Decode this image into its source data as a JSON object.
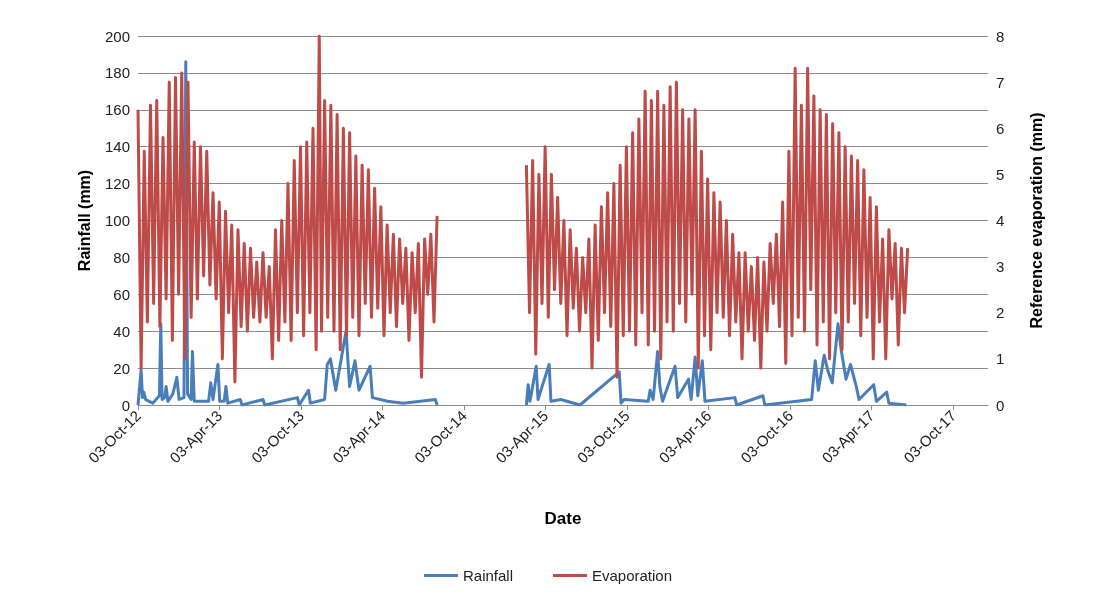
{
  "chart_data": {
    "type": "line",
    "xlabel": "Date",
    "ylabel": "Rainfall (mm)",
    "y2label": "Reference evaporation (mm)",
    "xlim": [
      "2012-10-03",
      "2017-12-20"
    ],
    "xticks": [
      {
        "value": "2012-10-03",
        "label": "03-Oct-12"
      },
      {
        "value": "2013-04-03",
        "label": "03-Apr-13"
      },
      {
        "value": "2013-10-03",
        "label": "03-Oct-13"
      },
      {
        "value": "2014-04-03",
        "label": "03-Apr-14"
      },
      {
        "value": "2014-10-03",
        "label": "03-Oct-14"
      },
      {
        "value": "2015-04-03",
        "label": "03-Apr-15"
      },
      {
        "value": "2015-10-03",
        "label": "03-Oct-15"
      },
      {
        "value": "2016-04-03",
        "label": "03-Apr-16"
      },
      {
        "value": "2016-10-03",
        "label": "03-Oct-16"
      },
      {
        "value": "2017-04-03",
        "label": "03-Apr-17"
      },
      {
        "value": "2017-10-03",
        "label": "03-Oct-17"
      }
    ],
    "ylim": [
      0,
      200
    ],
    "yticks": [
      0,
      20,
      40,
      60,
      80,
      100,
      120,
      140,
      160,
      180,
      200
    ],
    "y2lim": [
      0,
      8
    ],
    "y2ticks": [
      0,
      1,
      2,
      3,
      4,
      5,
      6,
      7,
      8
    ],
    "grid": "y",
    "legend": "bottom",
    "marker": "none",
    "line_style": "solid",
    "series": [
      {
        "name": "Rainfall",
        "color": "#4a7ebb",
        "x": [
          "2012-10-03",
          "2012-10-06",
          "2012-10-10",
          "2012-10-13",
          "2012-10-16",
          "2012-10-20",
          "2012-10-28",
          "2012-11-05",
          "2012-11-20",
          "2012-11-23",
          "2012-11-26",
          "2012-12-02",
          "2012-12-05",
          "2012-12-09",
          "2012-12-20",
          "2012-12-29",
          "2013-01-03",
          "2013-01-14",
          "2013-01-18",
          "2013-01-22",
          "2013-01-30",
          "2013-02-02",
          "2013-02-06",
          "2013-03-10",
          "2013-03-15",
          "2013-03-20",
          "2013-03-31",
          "2013-04-04",
          "2013-04-14",
          "2013-04-18",
          "2013-04-22",
          "2013-05-20",
          "2013-05-24",
          "2013-07-10",
          "2013-07-14",
          "2013-09-25",
          "2013-09-29",
          "2013-10-20",
          "2013-10-24",
          "2013-11-25",
          "2013-12-01",
          "2013-12-08",
          "2013-12-20",
          "2014-01-12",
          "2014-01-20",
          "2014-02-01",
          "2014-02-10",
          "2014-03-07",
          "2014-03-12",
          "2014-04-15",
          "2014-05-20",
          "2014-07-31",
          "2014-08-04",
          "2014-11-01",
          "2015-02-20",
          "2015-02-24",
          "2015-02-28",
          "2015-03-14",
          "2015-03-18",
          "2015-04-12",
          "2015-04-16",
          "2015-05-08",
          "2015-06-20",
          "2015-09-16",
          "2015-09-20",
          "2015-09-27",
          "2015-11-20",
          "2015-11-24",
          "2015-12-01",
          "2015-12-11",
          "2015-12-16",
          "2015-12-22",
          "2016-01-19",
          "2016-01-25",
          "2016-02-18",
          "2016-02-24",
          "2016-03-04",
          "2016-03-10",
          "2016-03-20",
          "2016-03-26",
          "2016-06-01",
          "2016-06-05",
          "2016-08-03",
          "2016-08-07",
          "2016-11-20",
          "2016-11-28",
          "2016-12-05",
          "2016-12-18",
          "2016-12-27",
          "2017-01-05",
          "2017-01-18",
          "2017-01-25",
          "2017-02-05",
          "2017-02-15",
          "2017-02-28",
          "2017-03-06",
          "2017-04-08",
          "2017-04-14",
          "2017-05-07",
          "2017-05-12",
          "2017-06-20"
        ],
        "values": [
          0,
          8,
          19,
          4,
          7,
          3,
          2,
          1,
          5,
          44,
          3,
          4,
          10,
          2,
          6,
          15,
          3,
          4,
          186,
          6,
          3,
          29,
          2,
          2,
          12,
          3,
          22,
          2,
          2,
          10,
          1,
          3,
          0,
          3,
          0,
          4,
          0,
          8,
          1,
          3,
          22,
          25,
          8,
          40,
          10,
          24,
          8,
          21,
          4,
          2,
          1,
          3,
          0,
          null,
          0,
          11,
          2,
          21,
          3,
          22,
          2,
          3,
          0,
          18,
          1,
          3,
          2,
          8,
          3,
          29,
          10,
          2,
          21,
          4,
          14,
          3,
          26,
          5,
          24,
          2,
          4,
          0,
          5,
          0,
          3,
          24,
          8,
          27,
          18,
          12,
          44,
          30,
          14,
          22,
          10,
          3,
          11,
          2,
          7,
          1,
          0
        ]
      },
      {
        "name": "Evaporation",
        "color": "#be4b48",
        "axis": "y2",
        "x": [
          "2012-10-03",
          "2012-10-10",
          "2012-10-17",
          "2012-10-24",
          "2012-10-31",
          "2012-11-07",
          "2012-11-14",
          "2012-11-21",
          "2012-11-28",
          "2012-12-05",
          "2012-12-12",
          "2012-12-19",
          "2012-12-26",
          "2013-01-02",
          "2013-01-09",
          "2013-01-16",
          "2013-01-23",
          "2013-01-30",
          "2013-02-06",
          "2013-02-13",
          "2013-02-20",
          "2013-02-27",
          "2013-03-06",
          "2013-03-13",
          "2013-03-20",
          "2013-03-27",
          "2013-04-03",
          "2013-04-10",
          "2013-04-17",
          "2013-04-24",
          "2013-05-01",
          "2013-05-08",
          "2013-05-15",
          "2013-05-22",
          "2013-05-29",
          "2013-06-05",
          "2013-06-12",
          "2013-06-19",
          "2013-06-26",
          "2013-07-03",
          "2013-07-10",
          "2013-07-17",
          "2013-07-24",
          "2013-07-31",
          "2013-08-07",
          "2013-08-14",
          "2013-08-21",
          "2013-08-28",
          "2013-09-04",
          "2013-09-11",
          "2013-09-18",
          "2013-09-25",
          "2013-10-02",
          "2013-10-09",
          "2013-10-16",
          "2013-10-23",
          "2013-10-30",
          "2013-11-06",
          "2013-11-13",
          "2013-11-18",
          "2013-11-25",
          "2013-12-02",
          "2013-12-09",
          "2013-12-16",
          "2013-12-23",
          "2013-12-30",
          "2014-01-06",
          "2014-01-13",
          "2014-01-20",
          "2014-01-27",
          "2014-02-03",
          "2014-02-10",
          "2014-02-17",
          "2014-02-24",
          "2014-03-03",
          "2014-03-10",
          "2014-03-17",
          "2014-03-24",
          "2014-03-31",
          "2014-04-07",
          "2014-04-14",
          "2014-04-21",
          "2014-04-28",
          "2014-05-05",
          "2014-05-12",
          "2014-05-19",
          "2014-05-26",
          "2014-06-02",
          "2014-06-09",
          "2014-06-16",
          "2014-06-23",
          "2014-06-30",
          "2014-07-07",
          "2014-07-14",
          "2014-07-21",
          "2014-07-28",
          "2014-08-04",
          "2014-11-01",
          "2015-02-20",
          "2015-02-27",
          "2015-03-06",
          "2015-03-13",
          "2015-03-20",
          "2015-03-27",
          "2015-04-03",
          "2015-04-10",
          "2015-04-17",
          "2015-04-24",
          "2015-05-01",
          "2015-05-08",
          "2015-05-15",
          "2015-05-22",
          "2015-05-29",
          "2015-06-05",
          "2015-06-12",
          "2015-06-19",
          "2015-06-26",
          "2015-07-03",
          "2015-07-10",
          "2015-07-17",
          "2015-07-24",
          "2015-07-31",
          "2015-08-07",
          "2015-08-14",
          "2015-08-21",
          "2015-08-28",
          "2015-09-04",
          "2015-09-11",
          "2015-09-18",
          "2015-09-25",
          "2015-10-02",
          "2015-10-09",
          "2015-10-16",
          "2015-10-23",
          "2015-10-30",
          "2015-11-06",
          "2015-11-13",
          "2015-11-20",
          "2015-11-27",
          "2015-12-04",
          "2015-12-11",
          "2015-12-18",
          "2015-12-25",
          "2016-01-01",
          "2016-01-08",
          "2016-01-15",
          "2016-01-22",
          "2016-01-29",
          "2016-02-05",
          "2016-02-12",
          "2016-02-19",
          "2016-02-26",
          "2016-03-04",
          "2016-03-11",
          "2016-03-18",
          "2016-03-25",
          "2016-04-01",
          "2016-04-08",
          "2016-04-15",
          "2016-04-22",
          "2016-04-29",
          "2016-05-06",
          "2016-05-13",
          "2016-05-20",
          "2016-05-27",
          "2016-06-03",
          "2016-06-10",
          "2016-06-17",
          "2016-06-24",
          "2016-07-01",
          "2016-07-08",
          "2016-07-15",
          "2016-07-22",
          "2016-07-29",
          "2016-08-05",
          "2016-08-12",
          "2016-08-19",
          "2016-08-26",
          "2016-09-02",
          "2016-09-09",
          "2016-09-16",
          "2016-09-23",
          "2016-09-30",
          "2016-10-07",
          "2016-10-14",
          "2016-10-21",
          "2016-10-28",
          "2016-11-04",
          "2016-11-11",
          "2016-11-18",
          "2016-11-25",
          "2016-12-02",
          "2016-12-09",
          "2016-12-16",
          "2016-12-23",
          "2016-12-30",
          "2017-01-06",
          "2017-01-13",
          "2017-01-20",
          "2017-01-27",
          "2017-02-03",
          "2017-02-10",
          "2017-02-17",
          "2017-02-24",
          "2017-03-03",
          "2017-03-10",
          "2017-03-17",
          "2017-03-24",
          "2017-03-31",
          "2017-04-07",
          "2017-04-14",
          "2017-04-21",
          "2017-04-28",
          "2017-05-05",
          "2017-05-12",
          "2017-05-19",
          "2017-05-26",
          "2017-06-02",
          "2017-06-09",
          "2017-06-16",
          "2017-06-23"
        ],
        "values": [
          6.4,
          0.8,
          5.5,
          1.8,
          6.5,
          2.2,
          6.6,
          1.7,
          5.8,
          2.3,
          7.0,
          1.4,
          7.1,
          2.4,
          7.2,
          1.0,
          7.0,
          1.9,
          5.7,
          2.3,
          5.6,
          2.8,
          5.5,
          2.6,
          4.6,
          2.3,
          4.4,
          1.0,
          4.2,
          2.0,
          3.9,
          0.5,
          3.8,
          1.7,
          3.5,
          1.6,
          3.4,
          1.9,
          3.1,
          1.8,
          3.3,
          1.9,
          3.0,
          1.0,
          3.8,
          1.4,
          4.0,
          1.8,
          4.8,
          1.4,
          5.3,
          2.0,
          5.6,
          1.5,
          5.7,
          2.0,
          6.0,
          1.2,
          8.0,
          1.6,
          6.6,
          1.9,
          6.5,
          1.6,
          6.3,
          1.2,
          6.0,
          1.5,
          5.9,
          1.9,
          5.4,
          1.5,
          5.2,
          2.2,
          5.1,
          1.9,
          4.7,
          2.1,
          4.3,
          1.5,
          3.9,
          2.0,
          3.7,
          1.7,
          3.6,
          2.2,
          3.4,
          1.4,
          3.3,
          2.0,
          3.5,
          0.6,
          3.6,
          2.4,
          3.7,
          1.8,
          4.1,
          null,
          5.2,
          2.0,
          5.3,
          1.1,
          5.0,
          2.2,
          5.6,
          1.9,
          5.0,
          2.5,
          4.5,
          2.2,
          4.0,
          1.5,
          3.8,
          2.1,
          3.4,
          1.6,
          3.2,
          2.0,
          3.6,
          0.8,
          3.9,
          1.4,
          4.3,
          2.0,
          4.6,
          1.7,
          4.8,
          0.6,
          5.2,
          1.5,
          5.6,
          1.6,
          5.9,
          1.3,
          6.2,
          2.0,
          6.8,
          1.3,
          6.6,
          1.6,
          6.8,
          1.0,
          6.5,
          1.8,
          6.9,
          1.6,
          7.0,
          2.2,
          6.4,
          1.8,
          6.2,
          2.4,
          6.4,
          0.8,
          5.5,
          1.5,
          4.9,
          1.2,
          4.6,
          2.0,
          4.4,
          1.9,
          4.0,
          1.5,
          3.7,
          1.8,
          3.3,
          1.0,
          3.3,
          1.6,
          3.0,
          1.4,
          3.2,
          0.8,
          3.1,
          1.6,
          3.5,
          2.2,
          3.7,
          1.7,
          4.4,
          0.9,
          5.5,
          1.5,
          7.3,
          1.9,
          6.5,
          1.6,
          7.3,
          2.5,
          6.7,
          1.3,
          6.4,
          1.8,
          6.3,
          1.0,
          6.1,
          2.0,
          5.9,
          1.2,
          5.6,
          1.8,
          5.4,
          2.2,
          5.3,
          1.5,
          5.1,
          1.9,
          4.5,
          1.0,
          4.3,
          1.8,
          3.6,
          1.0,
          3.8,
          2.3,
          3.5,
          1.3,
          3.4,
          2.0,
          3.4
        ]
      }
    ]
  }
}
